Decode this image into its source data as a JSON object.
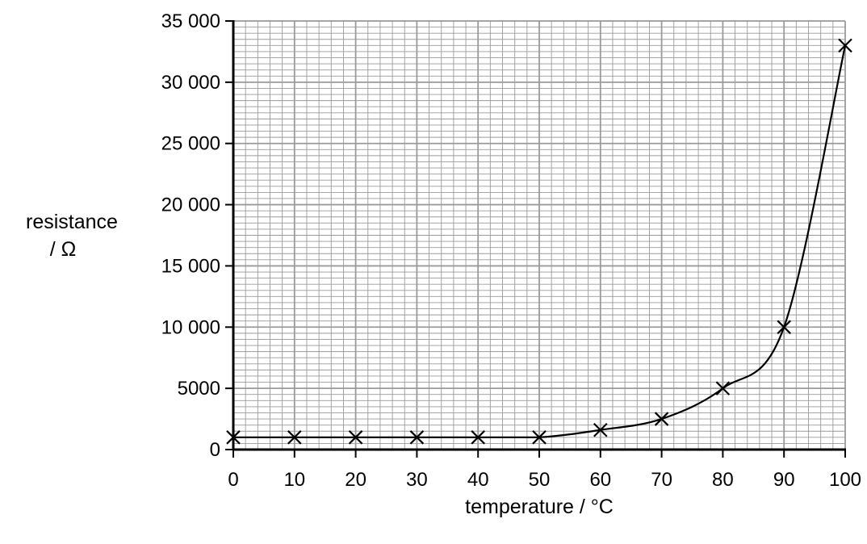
{
  "chart_data": {
    "type": "line",
    "title": "",
    "xlabel": "temperature / °C",
    "ylabel_lines": [
      "resistance",
      "/ Ω"
    ],
    "xlim": [
      0,
      100
    ],
    "ylim": [
      0,
      35000
    ],
    "x_ticks": [
      0,
      10,
      20,
      30,
      40,
      50,
      60,
      70,
      80,
      90,
      100
    ],
    "x_tick_labels": [
      "0",
      "10",
      "20",
      "30",
      "40",
      "50",
      "60",
      "70",
      "80",
      "90",
      "100"
    ],
    "y_ticks": [
      0,
      5000,
      10000,
      15000,
      20000,
      25000,
      30000,
      35000
    ],
    "y_tick_labels": [
      "0",
      "5000",
      "10 000",
      "15 000",
      "20 000",
      "25 000",
      "30 000",
      "35 000"
    ],
    "grid": true,
    "marker": "x",
    "series": [
      {
        "x": [
          0,
          10,
          20,
          30,
          40,
          50,
          60,
          70,
          80,
          90,
          100
        ],
        "y": [
          1000,
          1000,
          1000,
          1000,
          1000,
          1000,
          1600,
          2500,
          5000,
          10000,
          33000
        ]
      }
    ]
  }
}
